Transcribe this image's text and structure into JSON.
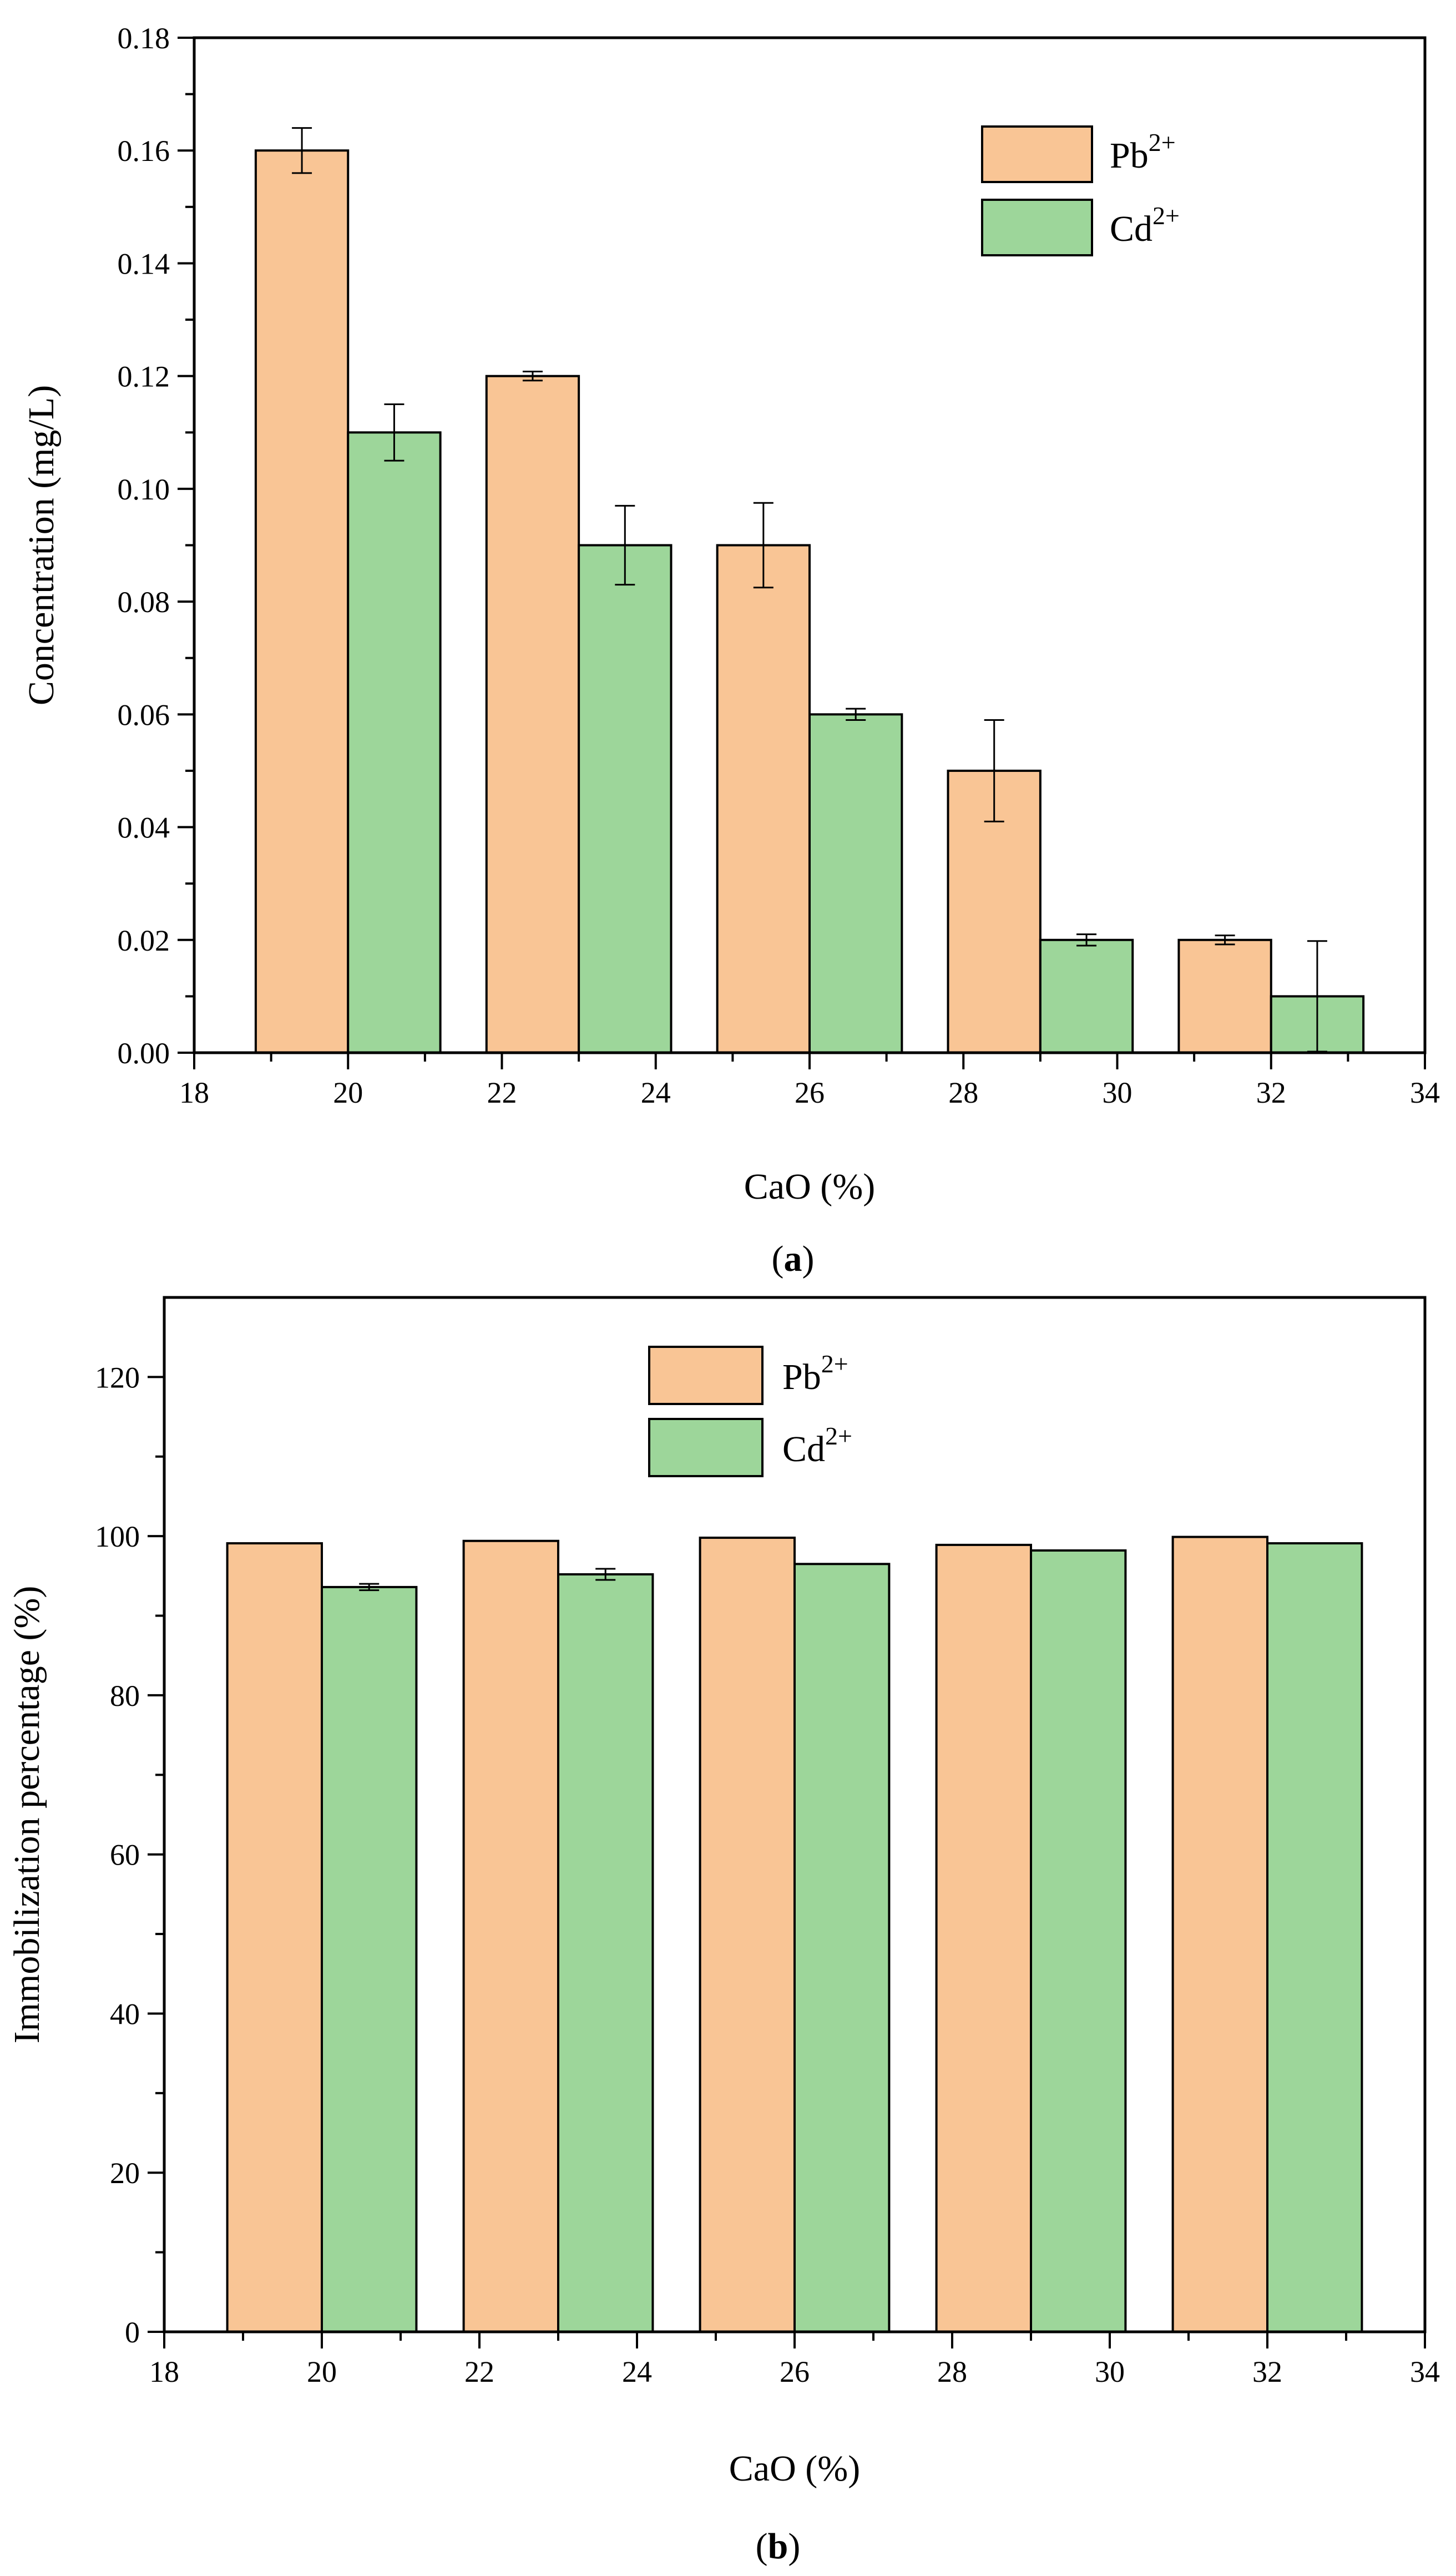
{
  "colors": {
    "pb": "#f9c595",
    "cd": "#9dd69a",
    "outline": "#000000"
  },
  "legend": {
    "pb": {
      "base": "Pb",
      "sup": "2+"
    },
    "cd": {
      "base": "Cd",
      "sup": "2+"
    }
  },
  "chart_data": [
    {
      "id": "a",
      "type": "bar",
      "caption_letter": "a",
      "xlabel": "CaO (%)",
      "ylabel": "Concentration (mg/L)",
      "xlim": [
        18,
        34
      ],
      "ylim": [
        0,
        0.18
      ],
      "xticks": [
        18,
        20,
        22,
        24,
        26,
        28,
        30,
        32,
        34
      ],
      "xtick_labels": [
        "18",
        "20",
        "22",
        "24",
        "26",
        "28",
        "30",
        "32",
        "34"
      ],
      "yticks": [
        0,
        0.02,
        0.04,
        0.06,
        0.08,
        0.1,
        0.12,
        0.14,
        0.16,
        0.18
      ],
      "ytick_labels": [
        "0.00",
        "0.02",
        "0.04",
        "0.06",
        "0.08",
        "0.10",
        "0.12",
        "0.14",
        "0.16",
        "0.18"
      ],
      "legend_position": "top-right",
      "bar_width": 1.2,
      "series": [
        {
          "name": "Pb2+",
          "key": "pb",
          "x": [
            19.4,
            22.4,
            25.4,
            28.4,
            31.4
          ],
          "values": [
            0.16,
            0.12,
            0.09,
            0.05,
            0.02
          ],
          "errors": [
            0.004,
            0.0008,
            0.0075,
            0.009,
            0.0008
          ]
        },
        {
          "name": "Cd2+",
          "key": "cd",
          "x": [
            20.6,
            23.6,
            26.6,
            29.6,
            32.6
          ],
          "values": [
            0.11,
            0.09,
            0.06,
            0.02,
            0.01
          ],
          "errors": [
            0.005,
            0.007,
            0.001,
            0.001,
            0.0098
          ]
        }
      ]
    },
    {
      "id": "b",
      "type": "bar",
      "caption_letter": "b",
      "xlabel": "CaO (%)",
      "ylabel": "Immobilization percentage (%)",
      "xlim": [
        18,
        34
      ],
      "ylim": [
        0,
        130
      ],
      "xticks": [
        18,
        20,
        22,
        24,
        26,
        28,
        30,
        32,
        34
      ],
      "xtick_labels": [
        "18",
        "20",
        "22",
        "24",
        "26",
        "28",
        "30",
        "32",
        "34"
      ],
      "yticks": [
        0,
        20,
        40,
        60,
        80,
        100,
        120
      ],
      "ytick_labels": [
        "0",
        "20",
        "40",
        "60",
        "80",
        "100",
        "120"
      ],
      "legend_position": "top-center",
      "bar_width": 1.2,
      "series": [
        {
          "name": "Pb2+",
          "key": "pb",
          "x": [
            19.4,
            22.4,
            25.4,
            28.4,
            31.4
          ],
          "values": [
            99.1,
            99.4,
            99.8,
            98.9,
            99.9
          ],
          "errors": [
            0,
            0,
            0,
            0,
            0
          ]
        },
        {
          "name": "Cd2+",
          "key": "cd",
          "x": [
            20.6,
            23.6,
            26.6,
            29.6,
            32.6
          ],
          "values": [
            93.6,
            95.2,
            96.5,
            98.2,
            99.1
          ],
          "errors": [
            0.4,
            0.7,
            0,
            0,
            0
          ]
        }
      ]
    }
  ]
}
